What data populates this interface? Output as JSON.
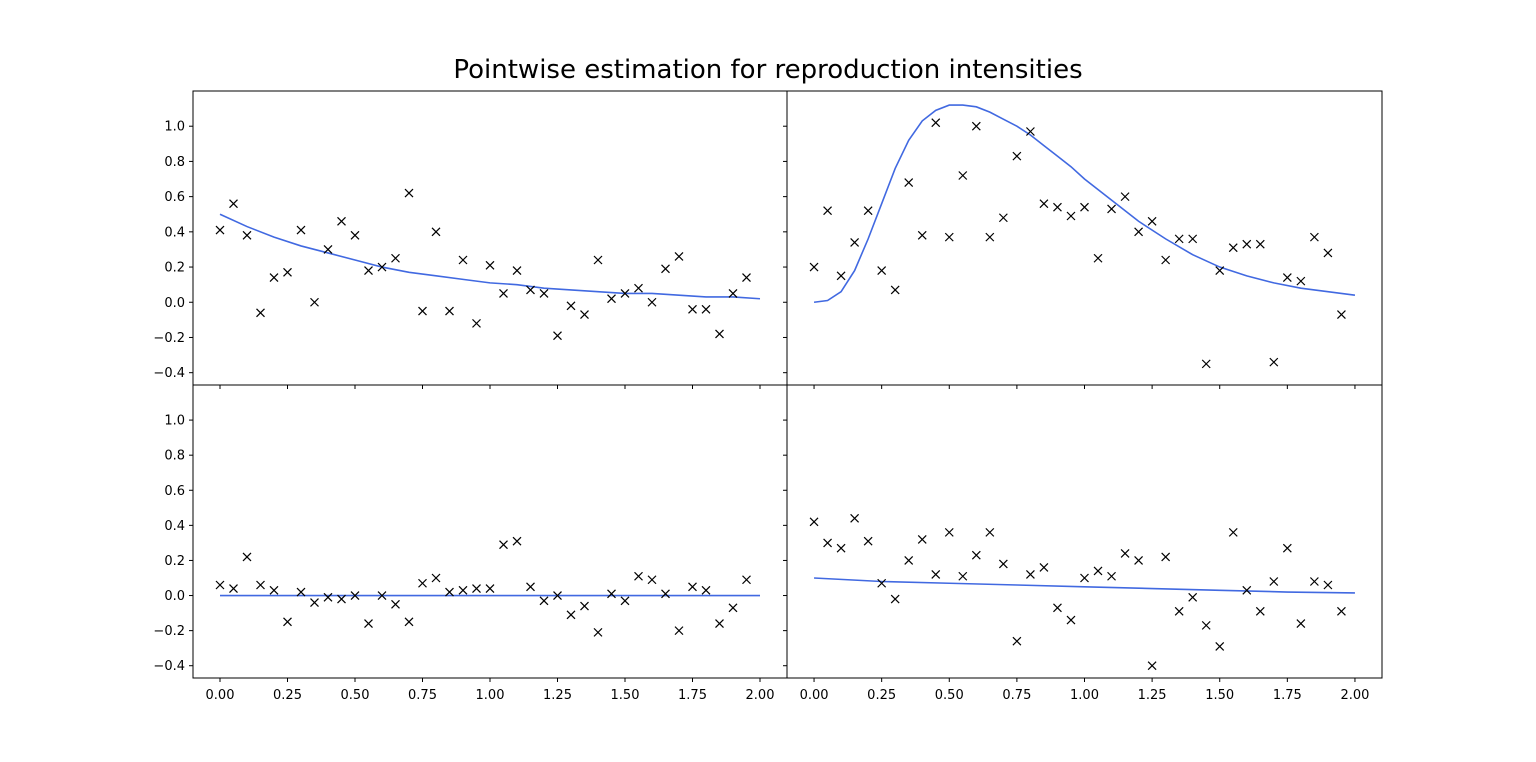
{
  "title": "Pointwise estimation for reproduction intensities",
  "colors": {
    "curve": "#4169e1",
    "marker": "#000000",
    "axes": "#000000",
    "background": "#ffffff"
  },
  "chart_data": {
    "type": "scatter",
    "layout": "2x2 grid, shared axes",
    "xlim": [
      -0.1,
      2.1
    ],
    "ylim": [
      -0.47,
      1.2
    ],
    "x_ticks": [
      0.0,
      0.25,
      0.5,
      0.75,
      1.0,
      1.25,
      1.5,
      1.75,
      2.0
    ],
    "x_tick_labels": [
      "0.00",
      "0.25",
      "0.50",
      "0.75",
      "1.00",
      "1.25",
      "1.50",
      "1.75",
      "2.00"
    ],
    "y_ticks": [
      -0.4,
      -0.2,
      0.0,
      0.2,
      0.4,
      0.6,
      0.8,
      1.0
    ],
    "y_tick_labels": [
      "−0.4",
      "−0.2",
      "0.0",
      "0.2",
      "0.4",
      "0.6",
      "0.8",
      "1.0"
    ],
    "x": [
      0.0,
      0.05,
      0.1,
      0.15,
      0.2,
      0.25,
      0.3,
      0.35,
      0.4,
      0.45,
      0.5,
      0.55,
      0.6,
      0.65,
      0.7,
      0.75,
      0.8,
      0.85,
      0.9,
      0.95,
      1.0,
      1.05,
      1.1,
      1.15,
      1.2,
      1.25,
      1.3,
      1.35,
      1.4,
      1.45,
      1.5,
      1.55,
      1.6,
      1.65,
      1.7,
      1.75,
      1.8,
      1.85,
      1.9,
      1.95
    ],
    "panels": [
      {
        "position": "top-left",
        "points_y": [
          0.41,
          0.56,
          0.38,
          -0.06,
          0.14,
          0.17,
          0.41,
          0.0,
          0.3,
          0.46,
          0.38,
          0.18,
          0.2,
          0.25,
          0.62,
          -0.05,
          0.4,
          -0.05,
          0.24,
          -0.12,
          0.21,
          0.05,
          0.18,
          0.07,
          0.05,
          -0.19,
          -0.02,
          -0.07,
          0.24,
          0.02,
          0.05,
          0.08,
          0.0,
          0.19,
          0.26,
          -0.04,
          -0.04,
          -0.18,
          0.05,
          0.14
        ],
        "curve": {
          "x": [
            0.0,
            0.1,
            0.2,
            0.3,
            0.4,
            0.5,
            0.6,
            0.7,
            0.8,
            0.9,
            1.0,
            1.1,
            1.2,
            1.3,
            1.4,
            1.5,
            1.6,
            1.7,
            1.8,
            1.9,
            2.0
          ],
          "y": [
            0.5,
            0.43,
            0.37,
            0.32,
            0.28,
            0.24,
            0.2,
            0.17,
            0.15,
            0.13,
            0.11,
            0.1,
            0.08,
            0.07,
            0.06,
            0.05,
            0.05,
            0.04,
            0.03,
            0.03,
            0.02
          ]
        }
      },
      {
        "position": "top-right",
        "points_y": [
          0.2,
          0.52,
          0.15,
          0.34,
          0.52,
          0.18,
          0.07,
          0.68,
          0.38,
          1.02,
          0.37,
          0.72,
          1.0,
          0.37,
          0.48,
          0.83,
          0.97,
          0.56,
          0.54,
          0.49,
          0.54,
          0.25,
          0.53,
          0.6,
          0.4,
          0.46,
          0.24,
          0.36,
          0.36,
          -0.35,
          0.18,
          0.31,
          0.33,
          0.33,
          -0.34,
          0.14,
          0.12,
          0.37,
          0.28,
          -0.07
        ],
        "curve": {
          "x": [
            0.0,
            0.05,
            0.1,
            0.15,
            0.2,
            0.25,
            0.3,
            0.35,
            0.4,
            0.45,
            0.5,
            0.55,
            0.6,
            0.65,
            0.7,
            0.75,
            0.8,
            0.85,
            0.9,
            0.95,
            1.0,
            1.1,
            1.2,
            1.3,
            1.4,
            1.5,
            1.6,
            1.7,
            1.8,
            1.9,
            2.0
          ],
          "y": [
            0.0,
            0.01,
            0.06,
            0.18,
            0.36,
            0.56,
            0.76,
            0.92,
            1.03,
            1.09,
            1.12,
            1.12,
            1.11,
            1.08,
            1.04,
            1.0,
            0.95,
            0.89,
            0.83,
            0.77,
            0.7,
            0.58,
            0.46,
            0.36,
            0.27,
            0.2,
            0.15,
            0.11,
            0.08,
            0.06,
            0.04
          ]
        }
      },
      {
        "position": "bottom-left",
        "points_y": [
          0.06,
          0.04,
          0.22,
          0.06,
          0.03,
          -0.15,
          0.02,
          -0.04,
          -0.01,
          -0.02,
          0.0,
          -0.16,
          0.0,
          -0.05,
          -0.15,
          0.07,
          0.1,
          0.02,
          0.03,
          0.04,
          0.04,
          0.29,
          0.31,
          0.05,
          -0.03,
          0.0,
          -0.11,
          -0.06,
          -0.21,
          0.01,
          -0.03,
          0.11,
          0.09,
          0.01,
          -0.2,
          0.05,
          0.03,
          -0.16,
          -0.07,
          0.09
        ],
        "curve": {
          "x": [
            0.0,
            0.5,
            1.0,
            1.5,
            2.0
          ],
          "y": [
            0.0,
            0.0,
            0.0,
            0.0,
            0.0
          ]
        }
      },
      {
        "position": "bottom-right",
        "points_y": [
          0.42,
          0.3,
          0.27,
          0.44,
          0.31,
          0.07,
          -0.02,
          0.2,
          0.32,
          0.12,
          0.36,
          0.11,
          0.23,
          0.36,
          0.18,
          -0.26,
          0.12,
          0.16,
          -0.07,
          -0.14,
          0.1,
          0.14,
          0.11,
          0.24,
          0.2,
          -0.4,
          0.22,
          -0.09,
          -0.01,
          -0.17,
          -0.29,
          0.36,
          0.03,
          -0.09,
          0.08,
          0.27,
          -0.16,
          0.08,
          0.06,
          -0.09
        ],
        "curve": {
          "x": [
            0.0,
            0.25,
            0.5,
            0.75,
            1.0,
            1.25,
            1.5,
            1.75,
            2.0
          ],
          "y": [
            0.1,
            0.08,
            0.07,
            0.06,
            0.05,
            0.04,
            0.03,
            0.02,
            0.015
          ]
        }
      }
    ]
  }
}
